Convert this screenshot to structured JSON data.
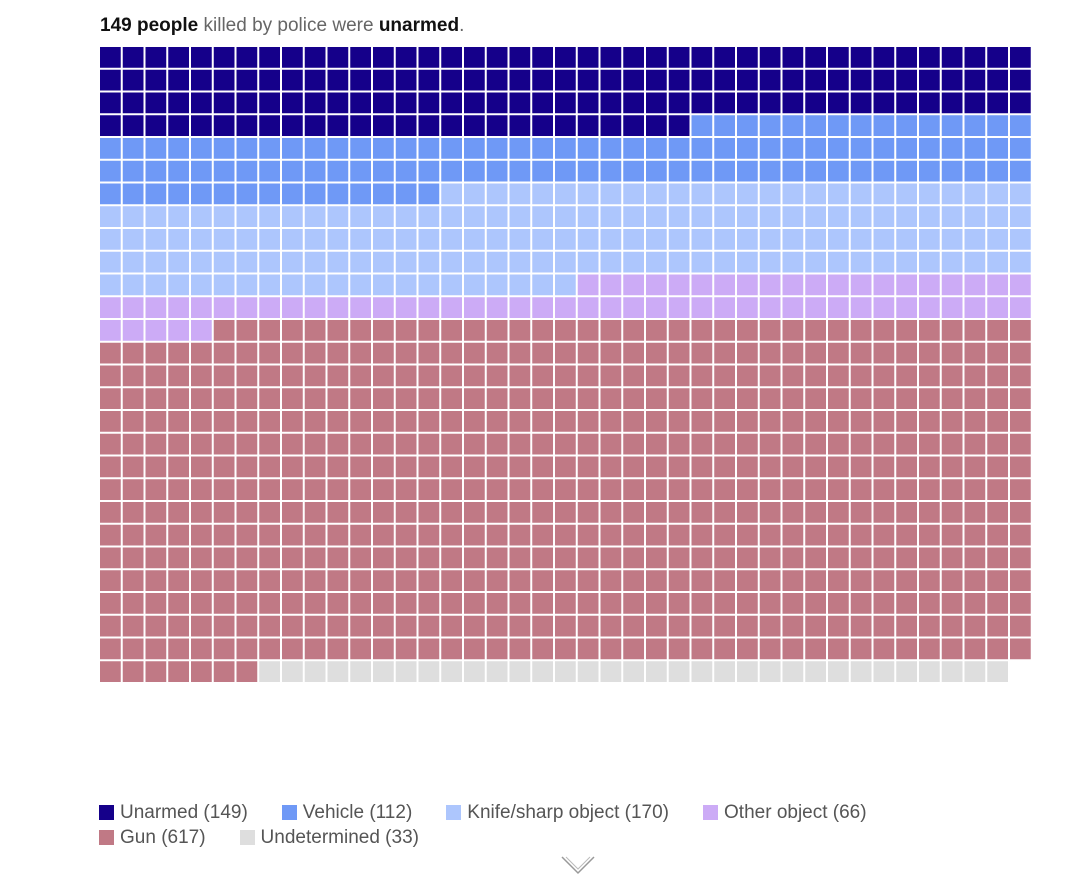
{
  "headline": {
    "count": "149 people",
    "middle": " killed by police were ",
    "emphasis": "unarmed",
    "end": "."
  },
  "chart_data": {
    "type": "waffle",
    "columns": 41,
    "categories": [
      {
        "name": "Unarmed",
        "value": 149,
        "color": "#15008a"
      },
      {
        "name": "Vehicle",
        "value": 112,
        "color": "#6f99f6"
      },
      {
        "name": "Knife/sharp object",
        "value": 170,
        "color": "#adc6fd"
      },
      {
        "name": "Other object",
        "value": 66,
        "color": "#ccabf6"
      },
      {
        "name": "Gun",
        "value": 617,
        "color": "#c07985"
      },
      {
        "name": "Undetermined",
        "value": 33,
        "color": "#dedede"
      }
    ]
  },
  "legend": {
    "rows": [
      [
        {
          "label": "Unarmed (149)",
          "color": "#15008a"
        },
        {
          "label": "Vehicle (112)",
          "color": "#6f99f6"
        },
        {
          "label": "Knife/sharp object (170)",
          "color": "#adc6fd"
        },
        {
          "label": "Other object (66)",
          "color": "#ccabf6"
        }
      ],
      [
        {
          "label": "Gun (617)",
          "color": "#c07985"
        },
        {
          "label": "Undetermined (33)",
          "color": "#dedede"
        }
      ]
    ]
  },
  "icons": {
    "scroll": "chevron-down-icon"
  }
}
